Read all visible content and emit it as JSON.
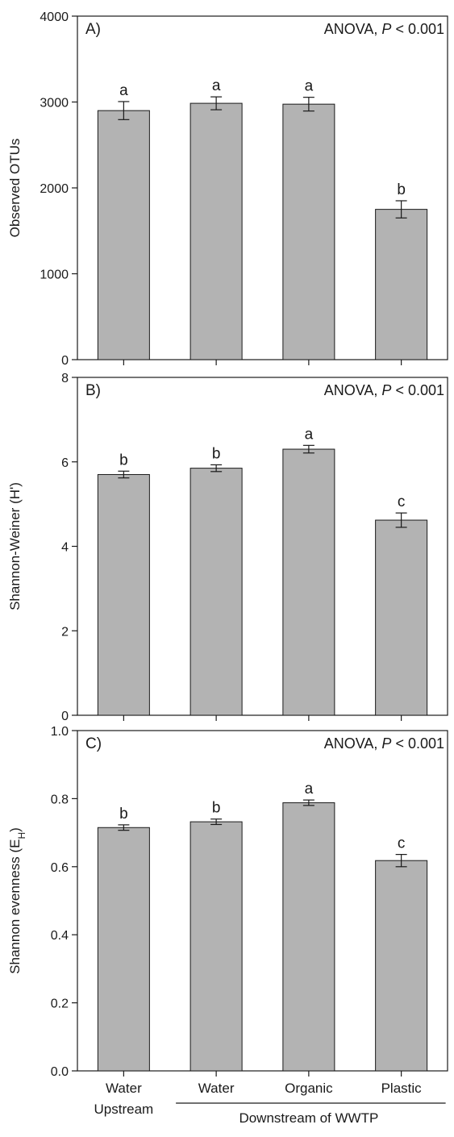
{
  "colors": {
    "bar_fill": "#b3b3b3",
    "bar_stroke": "#1a1a1a",
    "axis": "#1a1a1a",
    "text": "#1a1a1a"
  },
  "chart_data": [
    {
      "type": "bar",
      "panel_label": "A)",
      "annotation": {
        "prefix": "ANOVA, ",
        "italic": "P",
        "suffix": " < 0.001"
      },
      "ylabel": "Observed OTUs",
      "ylim": [
        0,
        4000
      ],
      "yticks": [
        0,
        1000,
        2000,
        3000,
        4000
      ],
      "ytick_labels": [
        "0",
        "1000",
        "2000",
        "3000",
        "4000"
      ],
      "categories": [
        "Water Upstream",
        "Water",
        "Organic",
        "Plastic"
      ],
      "values": [
        2900,
        2985,
        2975,
        1750
      ],
      "errors": [
        105,
        75,
        80,
        100
      ],
      "letters": [
        "a",
        "a",
        "a",
        "b"
      ]
    },
    {
      "type": "bar",
      "panel_label": "B)",
      "annotation": {
        "prefix": "ANOVA, ",
        "italic": "P",
        "suffix": " < 0.001"
      },
      "ylabel": "Shannon-Weiner (H')",
      "ylim": [
        0,
        8
      ],
      "yticks": [
        0,
        2,
        4,
        6,
        8
      ],
      "ytick_labels": [
        "0",
        "2",
        "4",
        "6",
        "8"
      ],
      "categories": [
        "Water Upstream",
        "Water",
        "Organic",
        "Plastic"
      ],
      "values": [
        5.7,
        5.85,
        6.3,
        4.62
      ],
      "errors": [
        0.08,
        0.08,
        0.09,
        0.17
      ],
      "letters": [
        "b",
        "b",
        "a",
        "c"
      ]
    },
    {
      "type": "bar",
      "panel_label": "C)",
      "annotation": {
        "prefix": "ANOVA, ",
        "italic": "P",
        "suffix": " < 0.001"
      },
      "ylabel": "Shannon evenness (E",
      "ylabel_sub": "H",
      "ylabel_end": ")",
      "ylim": [
        0,
        1.0
      ],
      "yticks": [
        0,
        0.2,
        0.4,
        0.6,
        0.8,
        1.0
      ],
      "ytick_labels": [
        "0.0",
        "0.2",
        "0.4",
        "0.6",
        "0.8",
        "1.0"
      ],
      "categories": [
        "Water Upstream",
        "Water",
        "Organic",
        "Plastic"
      ],
      "values": [
        0.715,
        0.732,
        0.788,
        0.618
      ],
      "errors": [
        0.008,
        0.008,
        0.008,
        0.018
      ],
      "letters": [
        "b",
        "b",
        "a",
        "c"
      ]
    }
  ],
  "xaxis": {
    "labels": [
      {
        "line1": "Water",
        "line2": "Upstream"
      },
      {
        "line1": "Water",
        "line2": ""
      },
      {
        "line1": "Organic",
        "line2": ""
      },
      {
        "line1": "Plastic",
        "line2": ""
      }
    ],
    "group_label": "Downstream of WWTP"
  }
}
